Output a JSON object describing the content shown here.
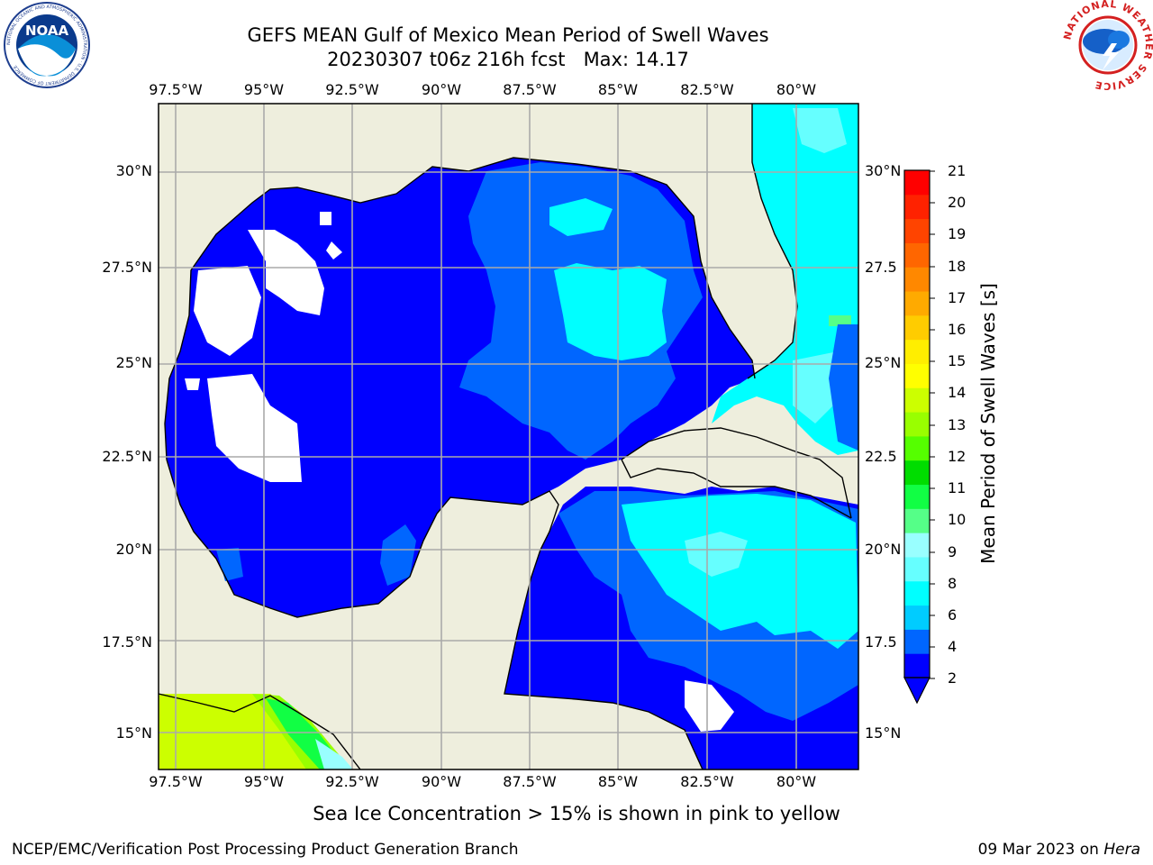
{
  "header": {
    "title": "GEFS MEAN Gulf of Mexico Mean Period of Swell Waves",
    "subtitle": "20230307 t06z 216h fcst   Max: 14.17"
  },
  "logos": {
    "left": "NOAA",
    "left_ring": "NATIONAL OCEANIC AND ATMOSPHERIC ADMINISTRATION · U.S. DEPARTMENT OF COMMERCE",
    "right_ring": "NATIONAL WEATHER SERVICE"
  },
  "map": {
    "lon_labels": [
      "97.5°W",
      "95°W",
      "92.5°W",
      "90°W",
      "87.5°W",
      "85°W",
      "82.5°W",
      "80°W"
    ],
    "lat_labels_left": [
      "30°N",
      "27.5°N",
      "25°N",
      "22.5°N",
      "20°N",
      "17.5°N",
      "15°N"
    ],
    "lat_labels_right": [
      "30°N",
      "27.5",
      "25°N",
      "22.5",
      "20°N",
      "17.5",
      "15°N"
    ],
    "colors": {
      "land": "#EEEEDD",
      "coast": "#000000",
      "grid": "#AAAAAA"
    }
  },
  "colorbar": {
    "title": "Mean Period of Swell Waves [s]",
    "ticks": [
      "2",
      "4",
      "6",
      "8",
      "9",
      "10",
      "11",
      "12",
      "13",
      "14",
      "15",
      "16",
      "17",
      "18",
      "19",
      "20",
      "21"
    ],
    "colors": [
      "#0000FF",
      "#0066FF",
      "#00CCFF",
      "#00FFFF",
      "#66FFFF",
      "#99FFFF",
      "#55FF88",
      "#11FF44",
      "#00DD00",
      "#55FF00",
      "#99FF00",
      "#CCFF00",
      "#FFFF00",
      "#FFEE00",
      "#FFCC00",
      "#FFAA00",
      "#FF8800",
      "#FF6600",
      "#FF4400",
      "#FF2200",
      "#FF0000"
    ]
  },
  "note": "Sea Ice Concentration > 15% is shown in pink to yellow",
  "footer": {
    "left": "NCEP/EMC/Verification Post Processing Product Generation Branch",
    "right_date": "09 Mar 2023 on ",
    "right_host": "Hera"
  }
}
